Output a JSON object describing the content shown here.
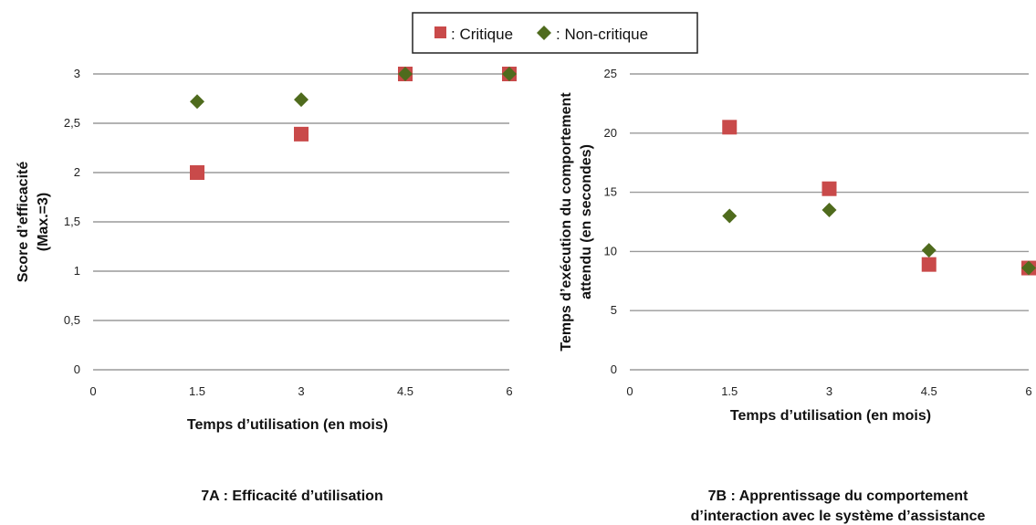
{
  "legend": {
    "items": [
      {
        "label": ": Critique",
        "color": "#c94a4a",
        "marker": "square"
      },
      {
        "label": ": Non-critique",
        "color": "#4f6b1d",
        "marker": "diamond"
      }
    ]
  },
  "chart_data": [
    {
      "type": "scatter",
      "title": "",
      "caption": [
        "7A : Efficacité d’utilisation"
      ],
      "xlabel": "Temps d’utilisation (en mois)",
      "ylabel": [
        "Score d’efficacité",
        "(Max.=3)"
      ],
      "xlim": [
        0,
        6
      ],
      "ylim": [
        0,
        3
      ],
      "x_ticks": [
        "0",
        "1.5",
        "3",
        "4.5",
        "6"
      ],
      "y_ticks": [
        "0",
        "0,5",
        "1",
        "1,5",
        "2",
        "2,5",
        "3"
      ],
      "y_tick_values": [
        0,
        0.5,
        1,
        1.5,
        2,
        2.5,
        3
      ],
      "grid": true,
      "series": [
        {
          "name": ": Critique",
          "color": "#c94a4a",
          "marker": "square",
          "x": [
            1.5,
            3,
            4.5,
            6
          ],
          "y": [
            2.0,
            2.39,
            3.0,
            3.0
          ]
        },
        {
          "name": ": Non-critique",
          "color": "#4f6b1d",
          "marker": "diamond",
          "x": [
            1.5,
            3,
            4.5,
            6
          ],
          "y": [
            2.72,
            2.74,
            3.0,
            3.0
          ]
        }
      ]
    },
    {
      "type": "scatter",
      "title": "",
      "caption": [
        "7B : Apprentissage du comportement",
        "d’interaction avec le système d’assistance"
      ],
      "xlabel": "Temps d’utilisation (en mois)",
      "ylabel": [
        "Temps d’exécution du comportement",
        "attendu (en secondes)"
      ],
      "xlim": [
        0,
        6
      ],
      "ylim": [
        0,
        25
      ],
      "x_ticks": [
        "0",
        "1.5",
        "3",
        "4.5",
        "6"
      ],
      "y_ticks": [
        "0",
        "5",
        "10",
        "15",
        "20",
        "25"
      ],
      "y_tick_values": [
        0,
        5,
        10,
        15,
        20,
        25
      ],
      "grid": true,
      "series": [
        {
          "name": ": Critique",
          "color": "#c94a4a",
          "marker": "square",
          "x": [
            1.5,
            3,
            4.5,
            6
          ],
          "y": [
            20.5,
            15.3,
            8.9,
            8.6
          ]
        },
        {
          "name": ": Non-critique",
          "color": "#4f6b1d",
          "marker": "diamond",
          "x": [
            1.5,
            3,
            4.5,
            6
          ],
          "y": [
            13.0,
            13.5,
            10.1,
            8.6
          ]
        }
      ]
    }
  ]
}
